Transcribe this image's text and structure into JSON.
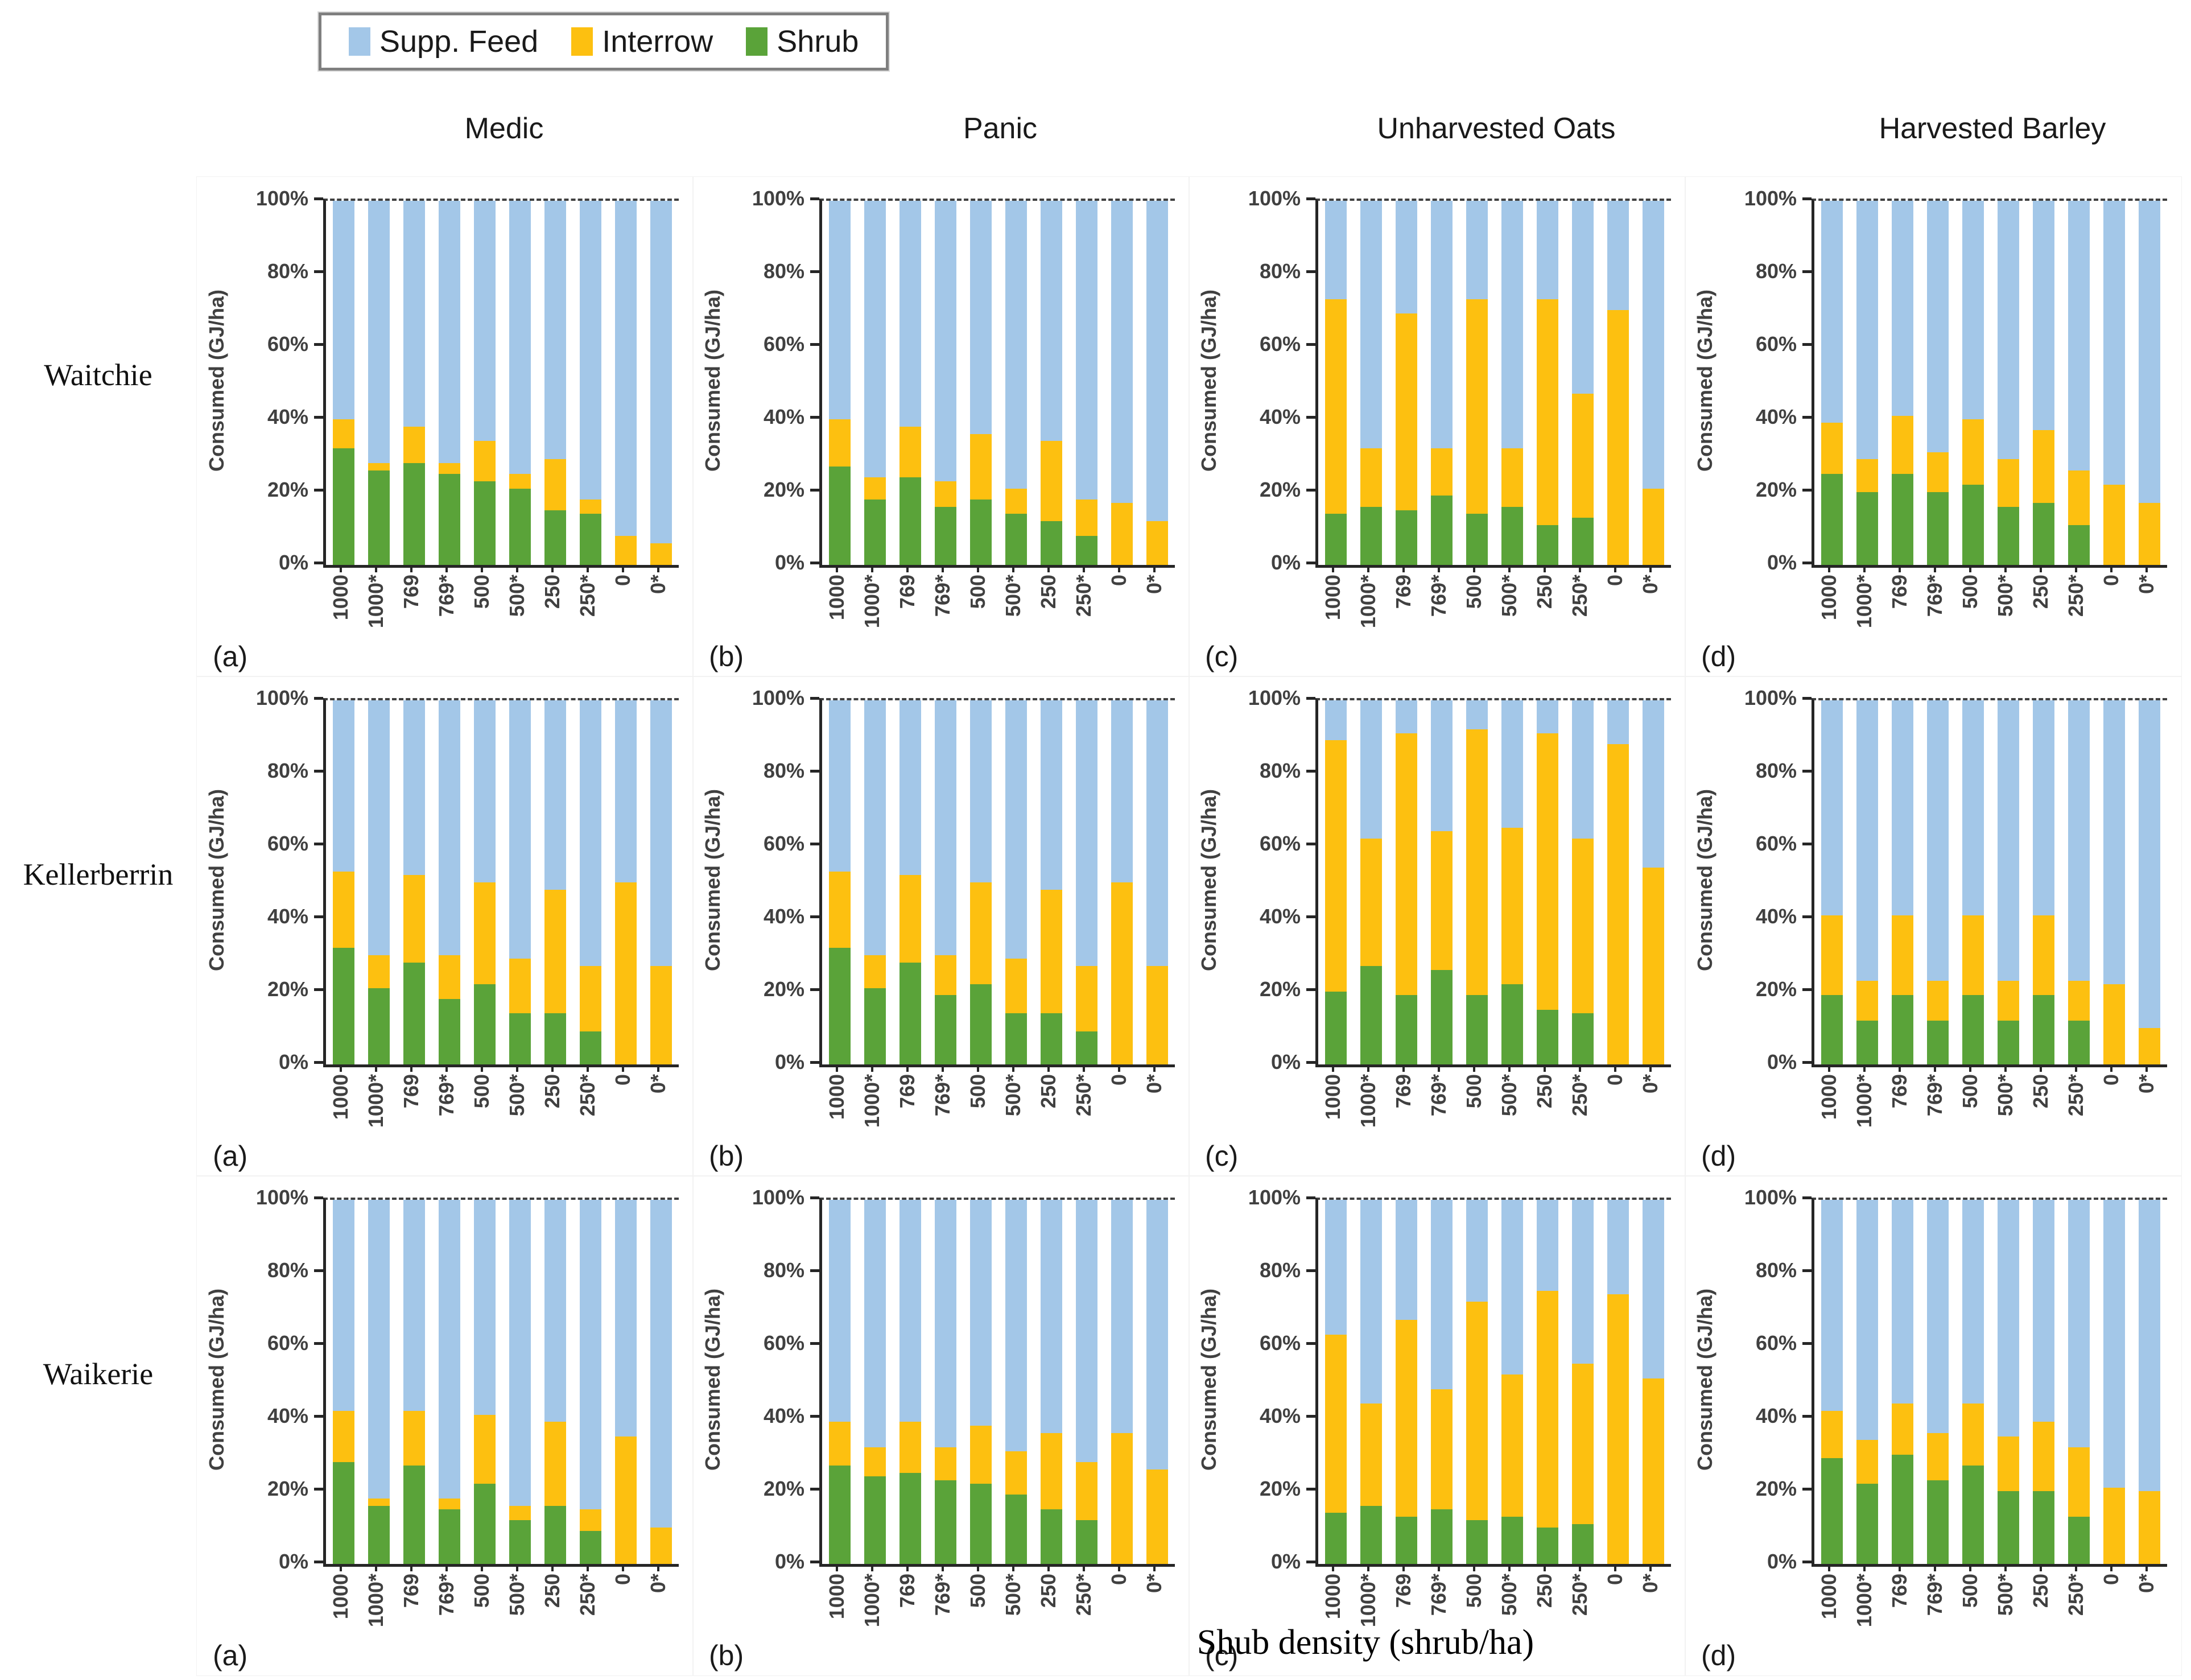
{
  "legend": {
    "items": [
      {
        "label": "Supp. Feed",
        "color": "#a3c7e8"
      },
      {
        "label": "Interrow",
        "color": "#fdc010"
      },
      {
        "label": "Shrub",
        "color": "#5aa339"
      }
    ]
  },
  "columns": [
    "Medic",
    "Panic",
    "Unharvested Oats",
    "Harvested Barley"
  ],
  "rows": [
    "Waitchie",
    "Kellerberrin",
    "Waikerie"
  ],
  "ylabel": "Consumed (GJ/ha)",
  "xlabel": "Shub density (shrub/ha)",
  "yticks": [
    "0%",
    "20%",
    "40%",
    "60%",
    "80%",
    "100%"
  ],
  "categories": [
    "1000",
    "1000*",
    "769",
    "769*",
    "500",
    "500*",
    "250",
    "250*",
    "0",
    "0*"
  ],
  "chart_data": [
    {
      "type": "bar",
      "stacked": true,
      "row": "Waitchie",
      "column": "Medic",
      "panel": "(a)",
      "ylim": [
        0,
        100
      ],
      "categories": [
        "1000",
        "1000*",
        "769",
        "769*",
        "500",
        "500*",
        "250",
        "250*",
        "0",
        "0*"
      ],
      "series": [
        {
          "name": "Shrub",
          "values": [
            32,
            26,
            28,
            25,
            23,
            21,
            15,
            14,
            0,
            0
          ]
        },
        {
          "name": "Interrow",
          "values": [
            8,
            2,
            10,
            3,
            11,
            4,
            14,
            4,
            8,
            6
          ]
        },
        {
          "name": "Supp. Feed",
          "values": [
            60,
            72,
            62,
            72,
            66,
            75,
            71,
            82,
            92,
            94
          ]
        }
      ]
    },
    {
      "type": "bar",
      "stacked": true,
      "row": "Waitchie",
      "column": "Panic",
      "panel": "(b)",
      "ylim": [
        0,
        100
      ],
      "categories": [
        "1000",
        "1000*",
        "769",
        "769*",
        "500",
        "500*",
        "250",
        "250*",
        "0",
        "0*"
      ],
      "series": [
        {
          "name": "Shrub",
          "values": [
            27,
            18,
            24,
            16,
            18,
            14,
            12,
            8,
            0,
            0
          ]
        },
        {
          "name": "Interrow",
          "values": [
            13,
            6,
            14,
            7,
            18,
            7,
            22,
            10,
            17,
            12
          ]
        },
        {
          "name": "Supp. Feed",
          "values": [
            60,
            76,
            62,
            77,
            64,
            79,
            66,
            82,
            83,
            88
          ]
        }
      ]
    },
    {
      "type": "bar",
      "stacked": true,
      "row": "Waitchie",
      "column": "Unharvested Oats",
      "panel": "(c)",
      "ylim": [
        0,
        100
      ],
      "categories": [
        "1000",
        "1000*",
        "769",
        "769*",
        "500",
        "500*",
        "250",
        "250*",
        "0",
        "0*"
      ],
      "series": [
        {
          "name": "Shrub",
          "values": [
            14,
            16,
            15,
            19,
            14,
            16,
            11,
            13,
            0,
            0
          ]
        },
        {
          "name": "Interrow",
          "values": [
            59,
            16,
            54,
            13,
            59,
            16,
            62,
            34,
            70,
            21
          ]
        },
        {
          "name": "Supp. Feed",
          "values": [
            27,
            68,
            31,
            68,
            27,
            68,
            27,
            53,
            30,
            79
          ]
        }
      ]
    },
    {
      "type": "bar",
      "stacked": true,
      "row": "Waitchie",
      "column": "Harvested Barley",
      "panel": "(d)",
      "ylim": [
        0,
        100
      ],
      "categories": [
        "1000",
        "1000*",
        "769",
        "769*",
        "500",
        "500*",
        "250",
        "250*",
        "0",
        "0*"
      ],
      "series": [
        {
          "name": "Shrub",
          "values": [
            25,
            20,
            25,
            20,
            22,
            16,
            17,
            11,
            0,
            0
          ]
        },
        {
          "name": "Interrow",
          "values": [
            14,
            9,
            16,
            11,
            18,
            13,
            20,
            15,
            22,
            17
          ]
        },
        {
          "name": "Supp. Feed",
          "values": [
            61,
            71,
            59,
            69,
            60,
            71,
            63,
            74,
            78,
            83
          ]
        }
      ]
    },
    {
      "type": "bar",
      "stacked": true,
      "row": "Kellerberrin",
      "column": "Medic",
      "panel": "(a)",
      "ylim": [
        0,
        100
      ],
      "categories": [
        "1000",
        "1000*",
        "769",
        "769*",
        "500",
        "500*",
        "250",
        "250*",
        "0",
        "0*"
      ],
      "series": [
        {
          "name": "Shrub",
          "values": [
            32,
            21,
            28,
            18,
            22,
            14,
            14,
            9,
            0,
            0
          ]
        },
        {
          "name": "Interrow",
          "values": [
            21,
            9,
            24,
            12,
            28,
            15,
            34,
            18,
            50,
            27
          ]
        },
        {
          "name": "Supp. Feed",
          "values": [
            47,
            70,
            48,
            70,
            50,
            71,
            52,
            73,
            50,
            73
          ]
        }
      ]
    },
    {
      "type": "bar",
      "stacked": true,
      "row": "Kellerberrin",
      "column": "Panic",
      "panel": "(b)",
      "ylim": [
        0,
        100
      ],
      "categories": [
        "1000",
        "1000*",
        "769",
        "769*",
        "500",
        "500*",
        "250",
        "250*",
        "0",
        "0*"
      ],
      "series": [
        {
          "name": "Shrub",
          "values": [
            32,
            21,
            28,
            19,
            22,
            14,
            14,
            9,
            0,
            0
          ]
        },
        {
          "name": "Interrow",
          "values": [
            21,
            9,
            24,
            11,
            28,
            15,
            34,
            18,
            50,
            27
          ]
        },
        {
          "name": "Supp. Feed",
          "values": [
            47,
            70,
            48,
            70,
            50,
            71,
            52,
            73,
            50,
            73
          ]
        }
      ]
    },
    {
      "type": "bar",
      "stacked": true,
      "row": "Kellerberrin",
      "column": "Unharvested Oats",
      "panel": "(c)",
      "ylim": [
        0,
        100
      ],
      "categories": [
        "1000",
        "1000*",
        "769",
        "769*",
        "500",
        "500*",
        "250",
        "250*",
        "0",
        "0*"
      ],
      "series": [
        {
          "name": "Shrub",
          "values": [
            20,
            27,
            19,
            26,
            19,
            22,
            15,
            14,
            0,
            0
          ]
        },
        {
          "name": "Interrow",
          "values": [
            69,
            35,
            72,
            38,
            73,
            43,
            76,
            48,
            88,
            54
          ]
        },
        {
          "name": "Supp. Feed",
          "values": [
            11,
            38,
            9,
            36,
            8,
            35,
            9,
            38,
            12,
            46
          ]
        }
      ]
    },
    {
      "type": "bar",
      "stacked": true,
      "row": "Kellerberrin",
      "column": "Harvested Barley",
      "panel": "(d)",
      "ylim": [
        0,
        100
      ],
      "categories": [
        "1000",
        "1000*",
        "769",
        "769*",
        "500",
        "500*",
        "250",
        "250*",
        "0",
        "0*"
      ],
      "series": [
        {
          "name": "Shrub",
          "values": [
            19,
            12,
            19,
            12,
            19,
            12,
            19,
            12,
            0,
            0
          ]
        },
        {
          "name": "Interrow",
          "values": [
            22,
            11,
            22,
            11,
            22,
            11,
            22,
            11,
            22,
            10
          ]
        },
        {
          "name": "Supp. Feed",
          "values": [
            59,
            77,
            59,
            77,
            59,
            77,
            59,
            77,
            78,
            90
          ]
        }
      ]
    },
    {
      "type": "bar",
      "stacked": true,
      "row": "Waikerie",
      "column": "Medic",
      "panel": "(a)",
      "ylim": [
        0,
        100
      ],
      "categories": [
        "1000",
        "1000*",
        "769",
        "769*",
        "500",
        "500*",
        "250",
        "250*",
        "0",
        "0*"
      ],
      "series": [
        {
          "name": "Shrub",
          "values": [
            28,
            16,
            27,
            15,
            22,
            12,
            16,
            9,
            0,
            0
          ]
        },
        {
          "name": "Interrow",
          "values": [
            14,
            2,
            15,
            3,
            19,
            4,
            23,
            6,
            35,
            10
          ]
        },
        {
          "name": "Supp. Feed",
          "values": [
            58,
            82,
            58,
            82,
            59,
            84,
            61,
            85,
            65,
            90
          ]
        }
      ]
    },
    {
      "type": "bar",
      "stacked": true,
      "row": "Waikerie",
      "column": "Panic",
      "panel": "(b)",
      "ylim": [
        0,
        100
      ],
      "categories": [
        "1000",
        "1000*",
        "769",
        "769*",
        "500",
        "500*",
        "250",
        "250*",
        "0",
        "0*"
      ],
      "series": [
        {
          "name": "Shrub",
          "values": [
            27,
            24,
            25,
            23,
            22,
            19,
            15,
            12,
            0,
            0
          ]
        },
        {
          "name": "Interrow",
          "values": [
            12,
            8,
            14,
            9,
            16,
            12,
            21,
            16,
            36,
            26
          ]
        },
        {
          "name": "Supp. Feed",
          "values": [
            61,
            68,
            61,
            68,
            62,
            69,
            64,
            72,
            64,
            74
          ]
        }
      ]
    },
    {
      "type": "bar",
      "stacked": true,
      "row": "Waikerie",
      "column": "Unharvested Oats",
      "panel": "(c)",
      "ylim": [
        0,
        100
      ],
      "categories": [
        "1000",
        "1000*",
        "769",
        "769*",
        "500",
        "500*",
        "250",
        "250*",
        "0",
        "0*"
      ],
      "series": [
        {
          "name": "Shrub",
          "values": [
            14,
            16,
            13,
            15,
            12,
            13,
            10,
            11,
            0,
            0
          ]
        },
        {
          "name": "Interrow",
          "values": [
            49,
            28,
            54,
            33,
            60,
            39,
            65,
            44,
            74,
            51
          ]
        },
        {
          "name": "Supp. Feed",
          "values": [
            37,
            56,
            33,
            52,
            28,
            48,
            25,
            45,
            26,
            49
          ]
        }
      ]
    },
    {
      "type": "bar",
      "stacked": true,
      "row": "Waikerie",
      "column": "Harvested Barley",
      "panel": "(d)",
      "ylim": [
        0,
        100
      ],
      "categories": [
        "1000",
        "1000*",
        "769",
        "769*",
        "500",
        "500*",
        "250",
        "250*",
        "0",
        "0*"
      ],
      "series": [
        {
          "name": "Shrub",
          "values": [
            29,
            22,
            30,
            23,
            27,
            20,
            20,
            13,
            0,
            0
          ]
        },
        {
          "name": "Interrow",
          "values": [
            13,
            12,
            14,
            13,
            17,
            15,
            19,
            19,
            21,
            20
          ]
        },
        {
          "name": "Supp. Feed",
          "values": [
            58,
            66,
            56,
            64,
            56,
            65,
            61,
            68,
            79,
            80
          ]
        }
      ]
    }
  ]
}
